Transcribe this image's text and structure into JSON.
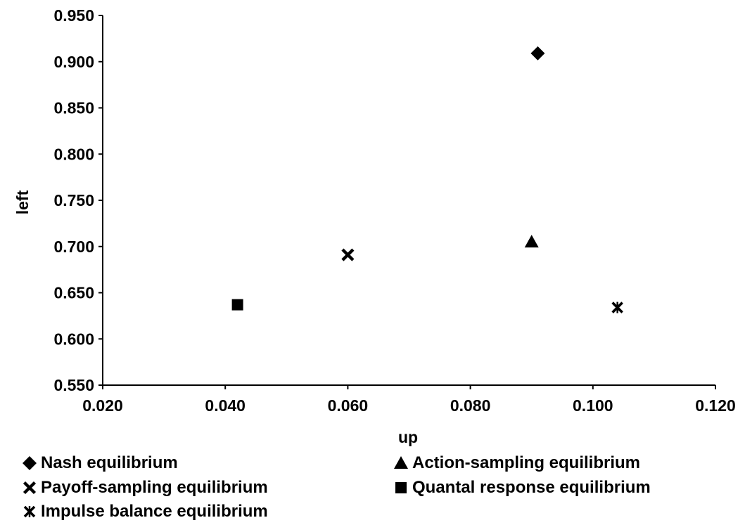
{
  "chart_data": {
    "type": "scatter",
    "xlabel": "up",
    "ylabel": "left",
    "xlim": [
      0.02,
      0.12
    ],
    "ylim": [
      0.55,
      0.95
    ],
    "x_ticks": [
      "0.020",
      "0.040",
      "0.060",
      "0.080",
      "0.100",
      "0.120"
    ],
    "y_ticks": [
      "0.550",
      "0.600",
      "0.650",
      "0.700",
      "0.750",
      "0.800",
      "0.850",
      "0.900",
      "0.950"
    ],
    "grid": false,
    "legend_position": "bottom",
    "series": [
      {
        "name": "Nash equilibrium",
        "marker": "diamond",
        "x": 0.091,
        "y": 0.909
      },
      {
        "name": "Action-sampling equilibrium",
        "marker": "triangle",
        "x": 0.09,
        "y": 0.705
      },
      {
        "name": "Payoff-sampling equilibrium",
        "marker": "x",
        "x": 0.06,
        "y": 0.691
      },
      {
        "name": "Quantal response equilibrium",
        "marker": "square",
        "x": 0.042,
        "y": 0.637
      },
      {
        "name": "Impulse balance equilibrium",
        "marker": "star",
        "x": 0.104,
        "y": 0.634
      }
    ],
    "marker_color": "#000000"
  }
}
